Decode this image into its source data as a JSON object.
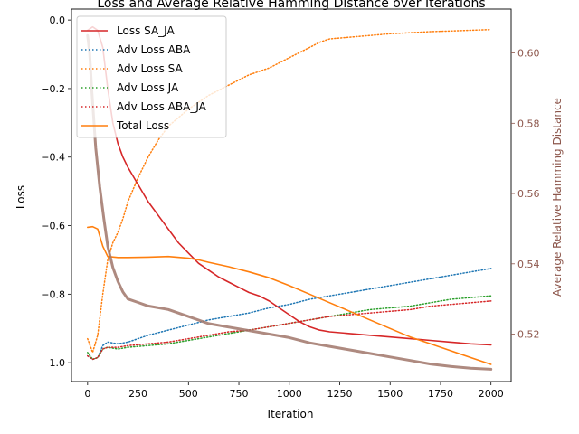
{
  "chart_data": {
    "type": "line",
    "title": "Loss and Average Relative Hamming Distance over Iterations",
    "xlabel": "Iteration",
    "ylabel": "Loss",
    "y2label": "Average Relative Hamming Distance",
    "xlim": [
      -80,
      2100
    ],
    "ylim": [
      -1.055,
      0.032
    ],
    "y2lim": [
      0.5065,
      0.6125
    ],
    "xticks": [
      0,
      250,
      500,
      750,
      1000,
      1250,
      1500,
      1750,
      2000
    ],
    "yticks": [
      -1.0,
      -0.8,
      -0.6,
      -0.4,
      -0.2,
      0.0
    ],
    "ytick_labels": [
      "−1.0",
      "−0.8",
      "−0.6",
      "−0.4",
      "−0.2",
      "0.0"
    ],
    "y2ticks": [
      0.52,
      0.54,
      0.56,
      0.58,
      0.6
    ],
    "y2tick_labels": [
      "0.52",
      "0.54",
      "0.56",
      "0.58",
      "0.60"
    ],
    "legend_position": "top-left",
    "grid": false,
    "series": [
      {
        "name": "Loss SA_JA",
        "color": "#d62728",
        "style": "solid",
        "axis": "left",
        "x": [
          0,
          25,
          50,
          75,
          100,
          125,
          150,
          175,
          200,
          250,
          300,
          350,
          400,
          450,
          500,
          550,
          600,
          650,
          700,
          750,
          800,
          850,
          900,
          950,
          1000,
          1050,
          1100,
          1150,
          1200,
          1300,
          1400,
          1500,
          1600,
          1700,
          1800,
          1900,
          2000
        ],
        "y": [
          -0.03,
          -0.02,
          -0.03,
          -0.08,
          -0.2,
          -0.3,
          -0.36,
          -0.4,
          -0.43,
          -0.48,
          -0.53,
          -0.57,
          -0.61,
          -0.65,
          -0.68,
          -0.71,
          -0.73,
          -0.75,
          -0.765,
          -0.78,
          -0.795,
          -0.805,
          -0.82,
          -0.84,
          -0.86,
          -0.88,
          -0.895,
          -0.905,
          -0.91,
          -0.915,
          -0.92,
          -0.925,
          -0.93,
          -0.935,
          -0.94,
          -0.945,
          -0.948
        ]
      },
      {
        "name": "Adv Loss ABA",
        "color": "#1f77b4",
        "style": "dotted",
        "axis": "left",
        "x": [
          0,
          25,
          50,
          75,
          100,
          150,
          200,
          250,
          300,
          400,
          500,
          600,
          700,
          800,
          900,
          1000,
          1100,
          1200,
          1300,
          1400,
          1500,
          1600,
          1700,
          1800,
          1900,
          2000
        ],
        "y": [
          -0.98,
          -0.99,
          -0.985,
          -0.95,
          -0.94,
          -0.945,
          -0.94,
          -0.93,
          -0.92,
          -0.905,
          -0.89,
          -0.875,
          -0.865,
          -0.855,
          -0.84,
          -0.83,
          -0.815,
          -0.805,
          -0.795,
          -0.785,
          -0.775,
          -0.765,
          -0.755,
          -0.745,
          -0.735,
          -0.725
        ]
      },
      {
        "name": "Adv Loss SA",
        "color": "#ff7f0e",
        "style": "dotted",
        "axis": "left",
        "x": [
          0,
          25,
          50,
          75,
          100,
          125,
          150,
          175,
          200,
          250,
          300,
          350,
          400,
          500,
          600,
          700,
          800,
          900,
          1000,
          1100,
          1150,
          1200,
          1300,
          1400,
          1500,
          1600,
          1700,
          1800,
          1900,
          2000
        ],
        "y": [
          -0.93,
          -0.97,
          -0.92,
          -0.8,
          -0.7,
          -0.65,
          -0.62,
          -0.58,
          -0.53,
          -0.46,
          -0.4,
          -0.35,
          -0.31,
          -0.26,
          -0.22,
          -0.19,
          -0.16,
          -0.14,
          -0.11,
          -0.08,
          -0.065,
          -0.055,
          -0.05,
          -0.045,
          -0.04,
          -0.037,
          -0.034,
          -0.032,
          -0.03,
          -0.028
        ]
      },
      {
        "name": "Adv Loss JA",
        "color": "#2ca02c",
        "style": "dotted",
        "axis": "left",
        "x": [
          0,
          25,
          50,
          75,
          100,
          150,
          200,
          300,
          400,
          500,
          600,
          700,
          800,
          900,
          1000,
          1100,
          1200,
          1300,
          1400,
          1500,
          1600,
          1700,
          1800,
          1900,
          2000
        ],
        "y": [
          -0.97,
          -0.99,
          -0.985,
          -0.96,
          -0.955,
          -0.96,
          -0.955,
          -0.95,
          -0.945,
          -0.935,
          -0.925,
          -0.915,
          -0.905,
          -0.895,
          -0.885,
          -0.875,
          -0.865,
          -0.855,
          -0.845,
          -0.84,
          -0.835,
          -0.825,
          -0.815,
          -0.81,
          -0.805
        ]
      },
      {
        "name": "Adv Loss ABA_JA",
        "color": "#d62728",
        "style": "dotted",
        "axis": "left",
        "x": [
          0,
          25,
          50,
          75,
          100,
          150,
          200,
          300,
          400,
          500,
          600,
          700,
          800,
          900,
          1000,
          1100,
          1200,
          1300,
          1400,
          1500,
          1600,
          1700,
          1800,
          1900,
          2000
        ],
        "y": [
          -0.98,
          -0.99,
          -0.985,
          -0.96,
          -0.955,
          -0.955,
          -0.95,
          -0.945,
          -0.94,
          -0.93,
          -0.92,
          -0.91,
          -0.905,
          -0.895,
          -0.885,
          -0.875,
          -0.865,
          -0.86,
          -0.855,
          -0.85,
          -0.845,
          -0.835,
          -0.83,
          -0.825,
          -0.82
        ]
      },
      {
        "name": "Total Loss",
        "color": "#ff7f0e",
        "style": "solid",
        "axis": "left",
        "x": [
          0,
          25,
          50,
          75,
          100,
          150,
          200,
          300,
          400,
          500,
          550,
          600,
          700,
          800,
          900,
          1000,
          1100,
          1200,
          1300,
          1400,
          1500,
          1600,
          1700,
          1800,
          1900,
          2000
        ],
        "y": [
          -0.605,
          -0.603,
          -0.61,
          -0.66,
          -0.69,
          -0.693,
          -0.693,
          -0.692,
          -0.69,
          -0.695,
          -0.7,
          -0.707,
          -0.72,
          -0.735,
          -0.752,
          -0.775,
          -0.8,
          -0.825,
          -0.85,
          -0.875,
          -0.9,
          -0.925,
          -0.945,
          -0.965,
          -0.985,
          -1.005
        ]
      },
      {
        "name": "",
        "color": "#a0766a",
        "style": "solid",
        "axis": "right",
        "x": [
          0,
          10,
          20,
          40,
          60,
          80,
          100,
          125,
          150,
          175,
          200,
          250,
          300,
          400,
          500,
          600,
          700,
          800,
          900,
          1000,
          1100,
          1200,
          1300,
          1400,
          1500,
          1600,
          1700,
          1800,
          1900,
          2000
        ],
        "y": [
          0.605,
          0.6,
          0.59,
          0.573,
          0.562,
          0.553,
          0.545,
          0.539,
          0.535,
          0.532,
          0.53,
          0.529,
          0.528,
          0.527,
          0.525,
          0.523,
          0.522,
          0.521,
          0.52,
          0.519,
          0.5175,
          0.5165,
          0.5155,
          0.5145,
          0.5135,
          0.5125,
          0.5115,
          0.5108,
          0.5103,
          0.51
        ]
      }
    ]
  }
}
